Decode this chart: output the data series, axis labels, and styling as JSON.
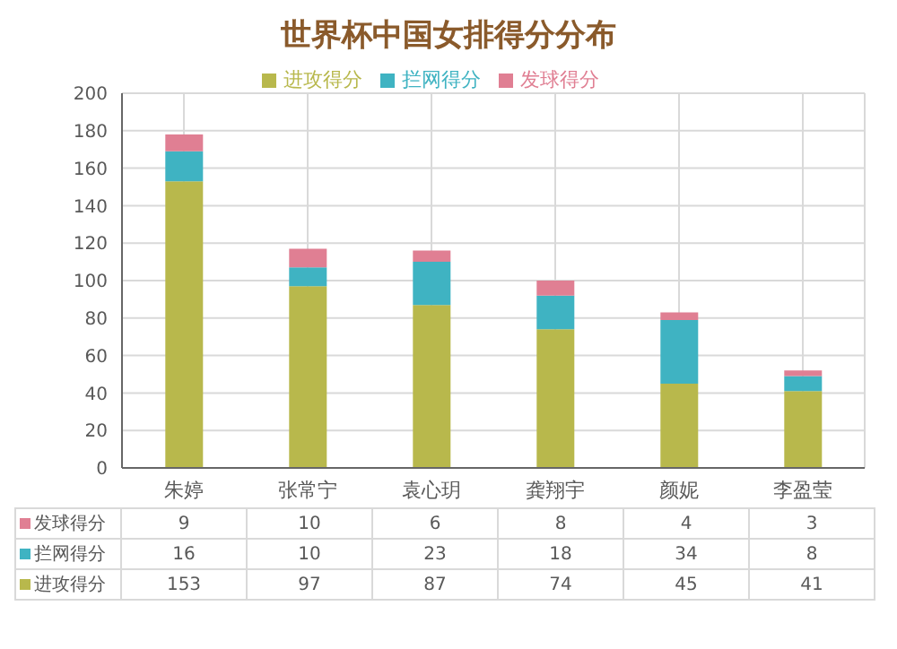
{
  "chart_data": {
    "type": "bar",
    "title": "世界杯中国女排得分分布",
    "categories": [
      "朱婷",
      "张常宁",
      "袁心玥",
      "龚翔宇",
      "颜妮",
      "李盈莹"
    ],
    "stacked": true,
    "series": [
      {
        "name": "进攻得分",
        "color": "#b8b84c",
        "values": [
          153,
          97,
          87,
          74,
          45,
          41
        ]
      },
      {
        "name": "拦网得分",
        "color": "#3fb3c2",
        "values": [
          16,
          10,
          23,
          18,
          34,
          8
        ]
      },
      {
        "name": "发球得分",
        "color": "#e07f93",
        "values": [
          9,
          10,
          6,
          8,
          4,
          3
        ]
      }
    ],
    "ylim": [
      0,
      200
    ],
    "yticks": [
      0,
      20,
      40,
      60,
      80,
      100,
      120,
      140,
      160,
      180,
      200
    ],
    "grid": true,
    "legend": "top",
    "data_labels": true
  }
}
